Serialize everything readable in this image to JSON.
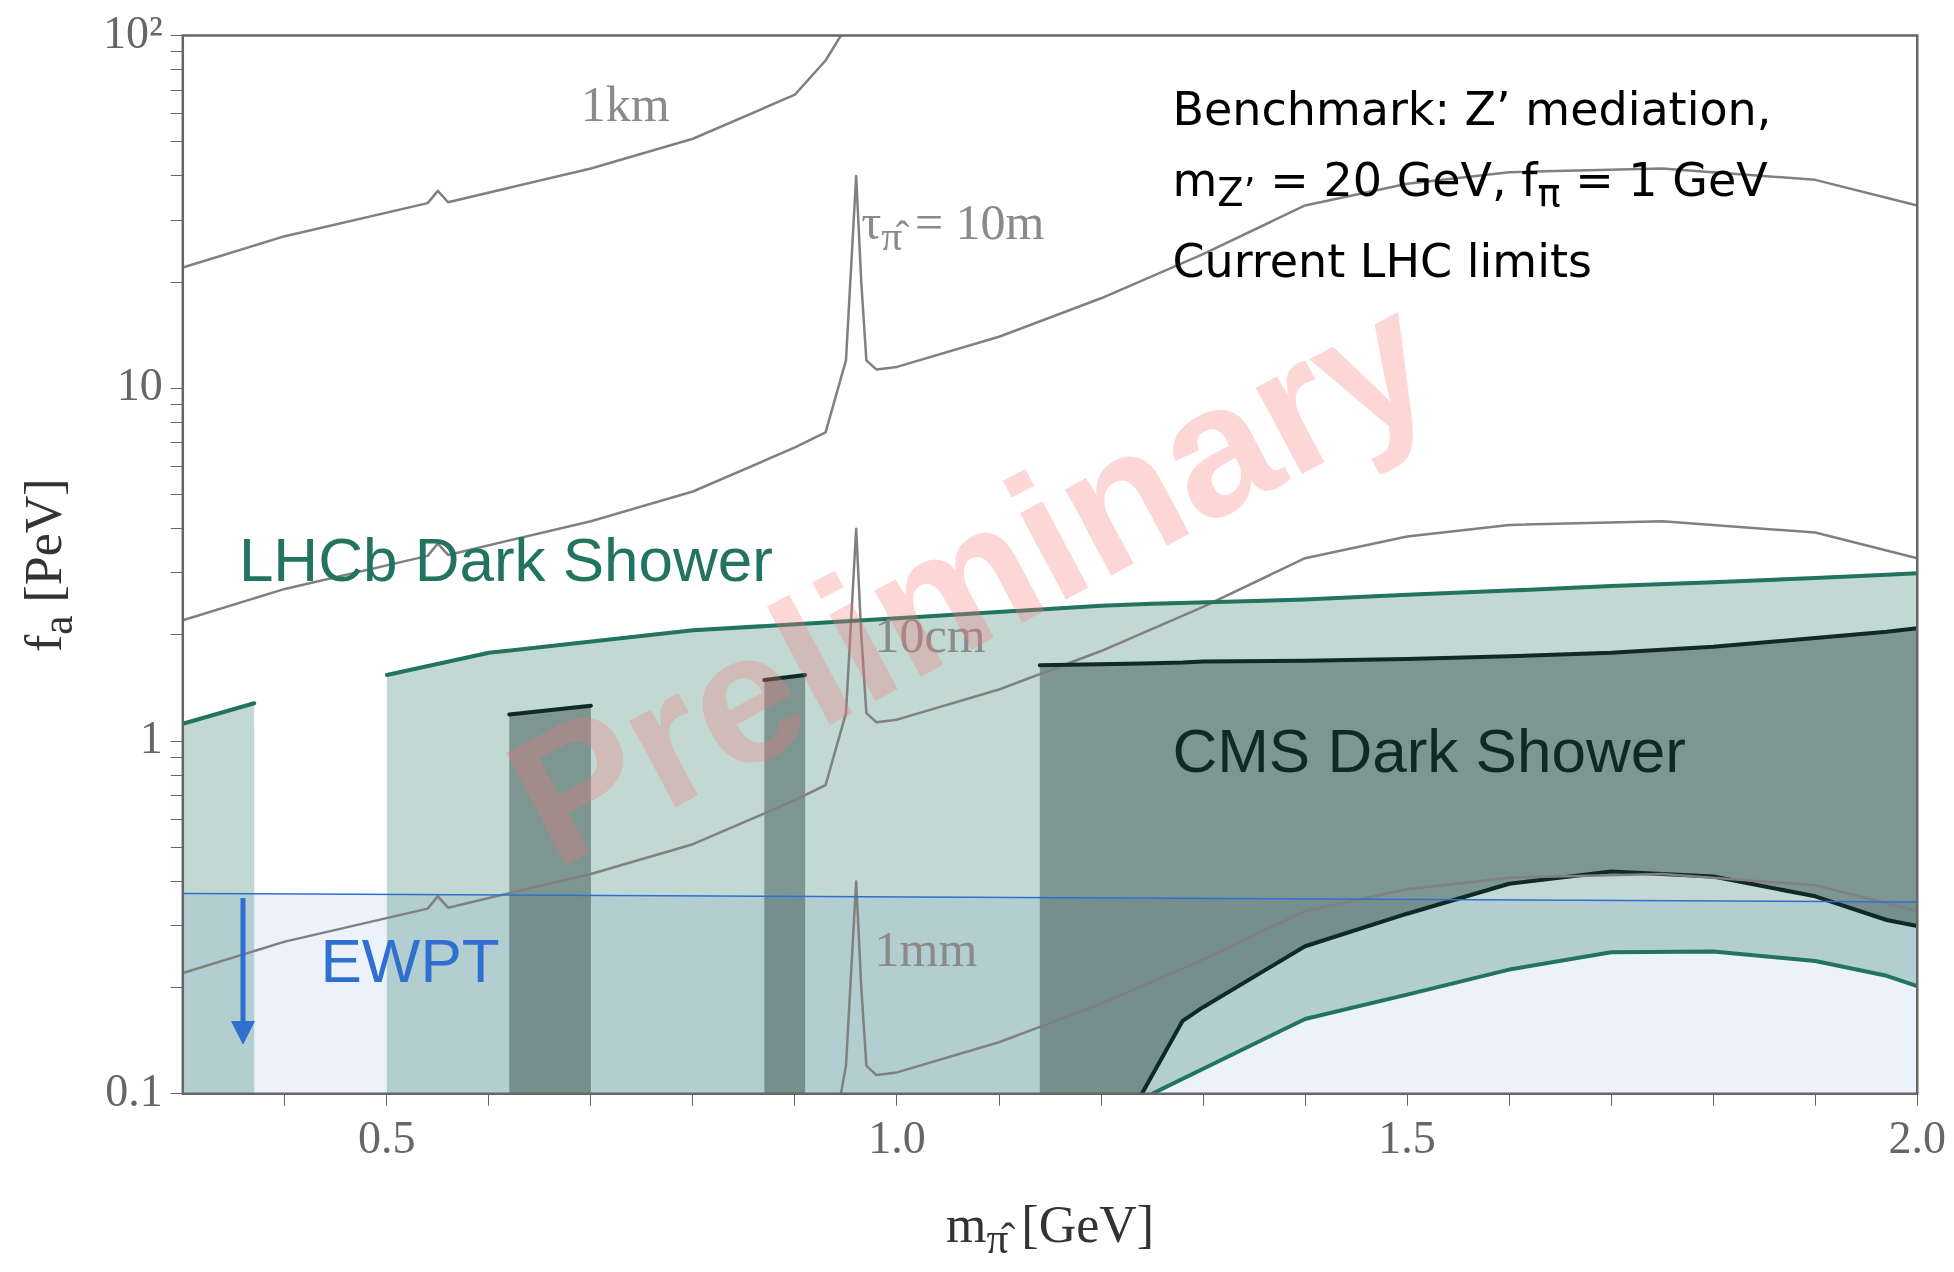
{
  "chart_data": {
    "type": "line",
    "xlabel": "m$_{π̂}$ [GeV]",
    "ylabel": "f$_{a}$ [PeV]",
    "log": "y",
    "xlim": [
      0.3,
      2.0
    ],
    "ylim": [
      0.1,
      100
    ],
    "xticks": [
      {
        "value": 0.4,
        "label": null
      },
      0.5,
      {
        "value": 0.6,
        "label": null
      },
      {
        "value": 0.7,
        "label": null
      },
      {
        "value": 0.8,
        "label": null
      },
      {
        "value": 0.9,
        "label": null
      },
      {
        "value": 1,
        "label": "1.0"
      },
      {
        "value": 1.1,
        "label": null
      },
      {
        "value": 1.2,
        "label": null
      },
      {
        "value": 1.3,
        "label": null
      },
      {
        "value": 1.4,
        "label": null
      },
      1.5,
      {
        "value": 1.6,
        "label": null
      },
      {
        "value": 1.7,
        "label": null
      },
      {
        "value": 1.8,
        "label": null
      },
      {
        "value": 1.9,
        "label": null
      },
      {
        "value": 2,
        "label": "2.0"
      }
    ],
    "yticks": [
      0.1,
      {
        "value": 0.2,
        "label": null
      },
      {
        "value": 0.3,
        "label": null
      },
      {
        "value": 0.4,
        "label": null
      },
      {
        "value": 0.5,
        "label": null
      },
      {
        "value": 0.6,
        "label": null
      },
      {
        "value": 0.7,
        "label": null
      },
      {
        "value": 0.8,
        "label": null
      },
      {
        "value": 0.9,
        "label": null
      },
      1,
      {
        "value": 2,
        "label": null
      },
      {
        "value": 3,
        "label": null
      },
      {
        "value": 4,
        "label": null
      },
      {
        "value": 5,
        "label": null
      },
      {
        "value": 6,
        "label": null
      },
      {
        "value": 7,
        "label": null
      },
      {
        "value": 8,
        "label": null
      },
      {
        "value": 9,
        "label": null
      },
      10,
      {
        "value": 20,
        "label": null
      },
      {
        "value": 30,
        "label": null
      },
      {
        "value": 40,
        "label": null
      },
      {
        "value": 50,
        "label": null
      },
      {
        "value": 60,
        "label": null
      },
      {
        "value": 70,
        "label": null
      },
      {
        "value": 80,
        "label": null
      },
      {
        "value": 90,
        "label": null
      },
      {
        "value": 100,
        "label": "10²"
      }
    ],
    "series": [
      {
        "name": "EWPT",
        "color": "#2f6fd0",
        "x": [
          0.3,
          2.0
        ],
        "values": [
          0.37,
          0.35
        ],
        "lower": [
          0.1,
          0.1
        ],
        "upper": [
          0.37,
          0.35
        ]
      },
      {
        "name": "LHCb Dark Shower",
        "color": "#227460",
        "upper": [
          1.12,
          1.28,
          null,
          1.54,
          1.78,
          2.06,
          2.23,
          2.42,
          2.45,
          2.52,
          2.6,
          2.67,
          2.75,
          2.82,
          2.9,
          2.96,
          2.99
        ],
        "x": [
          0.3,
          0.37,
          0.43,
          0.5,
          0.6,
          0.8,
          1.0,
          1.2,
          1.25,
          1.4,
          1.5,
          1.6,
          1.7,
          1.8,
          1.9,
          1.97,
          2.0
        ],
        "values": [
          1.12,
          1.28,
          null,
          1.54,
          1.78,
          2.06,
          2.23,
          2.42,
          2.45,
          2.52,
          2.6,
          2.67,
          2.75,
          2.82,
          2.9,
          2.96,
          2.99
        ],
        "lower": [
          0.1,
          0.1,
          null,
          0.1,
          0.1,
          0.1,
          0.1,
          0.1,
          0.1,
          0.163,
          0.191,
          0.225,
          0.252,
          0.253,
          0.238,
          0.216,
          0.202
        ]
      },
      {
        "name": "CMS Dark Shower",
        "color": "#0f2a25",
        "upper": [
          1.19,
          1.26,
          null,
          1.49,
          1.54,
          null,
          1.64,
          1.66,
          1.67,
          1.68,
          1.69,
          1.71,
          1.74,
          1.78,
          1.85,
          1.96,
          2.04,
          2.09
        ],
        "x": [
          0.62,
          0.7,
          0.78,
          0.87,
          0.91,
          1.02,
          1.14,
          1.24,
          1.28,
          1.3,
          1.4,
          1.5,
          1.6,
          1.7,
          1.8,
          1.9,
          1.97,
          2.0
        ],
        "values": [
          1.19,
          1.26,
          null,
          1.49,
          1.54,
          null,
          1.64,
          1.66,
          1.67,
          1.68,
          1.69,
          1.71,
          1.74,
          1.78,
          1.85,
          1.96,
          2.04,
          2.09
        ],
        "lower": [
          0.1,
          0.1,
          null,
          0.1,
          0.1,
          null,
          0.1,
          0.1,
          0.161,
          0.176,
          0.262,
          0.324,
          0.394,
          0.427,
          0.413,
          0.363,
          0.311,
          0.299
        ]
      },
      {
        "name": "1km",
        "color": "#808080",
        "x": [
          0.3,
          0.4,
          0.54,
          0.55,
          0.56,
          0.7,
          0.8,
          0.9,
          0.93,
          0.945
        ],
        "values": [
          22,
          27,
          33.5,
          36.3,
          33.7,
          42,
          51,
          68,
          85,
          100
        ]
      },
      {
        "name": "τ$_{π̂}$ = 10m",
        "color": "#808080",
        "x": [
          0.3,
          0.4,
          0.54,
          0.55,
          0.56,
          0.7,
          0.8,
          0.9,
          0.93,
          0.95,
          0.96,
          0.965,
          0.97,
          0.98,
          1.0,
          1.1,
          1.2,
          1.3,
          1.4,
          1.5,
          1.6,
          1.75,
          1.9,
          2.0
        ],
        "values": [
          2.2,
          2.7,
          3.35,
          3.63,
          3.37,
          4.2,
          5.1,
          6.8,
          7.5,
          12,
          40,
          20,
          12,
          11.3,
          11.5,
          14,
          18,
          24,
          33,
          38,
          41,
          42,
          39,
          33
        ]
      },
      {
        "name": "10cm",
        "color": "#808080",
        "x": [
          0.3,
          0.4,
          0.54,
          0.55,
          0.56,
          0.7,
          0.8,
          0.9,
          0.93,
          0.95,
          0.96,
          0.965,
          0.97,
          0.98,
          1.0,
          1.1,
          1.2,
          1.3,
          1.4,
          1.5,
          1.6,
          1.75,
          1.9,
          2.0
        ],
        "values": [
          0.22,
          0.27,
          0.335,
          0.363,
          0.337,
          0.42,
          0.51,
          0.68,
          0.75,
          1.2,
          4.0,
          2.0,
          1.2,
          1.13,
          1.15,
          1.4,
          1.8,
          2.4,
          3.3,
          3.8,
          4.1,
          4.2,
          3.9,
          3.3
        ]
      },
      {
        "name": "1mm",
        "color": "#808080",
        "x": [
          0.945,
          0.95,
          0.96,
          0.965,
          0.97,
          0.98,
          1.0,
          1.1,
          1.2,
          1.3,
          1.4,
          1.5,
          1.6,
          1.75,
          1.9,
          2.0
        ],
        "values": [
          0.1,
          0.12,
          0.4,
          0.2,
          0.12,
          0.113,
          0.115,
          0.14,
          0.18,
          0.24,
          0.33,
          0.38,
          0.41,
          0.42,
          0.39,
          0.33
        ]
      },
      {
        "color": "#227460",
        "x": [
          1.25,
          1.4,
          1.5,
          1.6,
          1.7,
          1.8,
          1.9,
          1.97,
          2.0
        ],
        "values": [
          0.1,
          0.163,
          0.191,
          0.225,
          0.252,
          0.253,
          0.238,
          0.216,
          0.202
        ]
      },
      {
        "color": "#0f2a25",
        "x": [
          1.24,
          1.28,
          1.3,
          1.4,
          1.5,
          1.6,
          1.7,
          1.8,
          1.9,
          1.97,
          2.0
        ],
        "values": [
          0.1,
          0.161,
          0.176,
          0.262,
          0.324,
          0.394,
          0.427,
          0.413,
          0.363,
          0.311,
          0.299
        ]
      }
    ],
    "annotations": [
      "Benchmark: Z’ mediation,",
      "m$_{Z’}$ = 20 GeV, f$_{π}$ = 1 GeV",
      "Current LHC limits",
      "Preliminary"
    ]
  }
}
